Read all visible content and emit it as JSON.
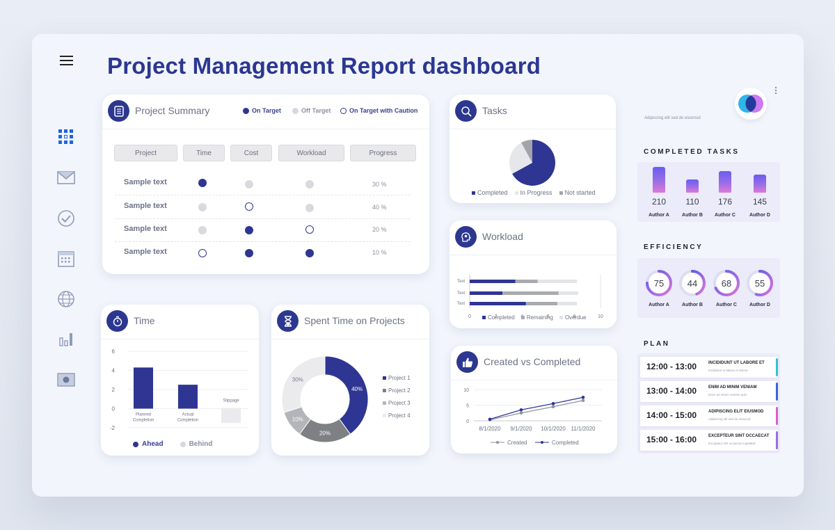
{
  "header": {
    "title": "Project Management Report dashboard"
  },
  "sidebar": {
    "items": [
      {
        "name": "dashboard",
        "icon": "grid-icon"
      },
      {
        "name": "mail",
        "icon": "mail-icon"
      },
      {
        "name": "tasks",
        "icon": "check-circle-icon"
      },
      {
        "name": "calendar",
        "icon": "calendar-icon"
      },
      {
        "name": "web",
        "icon": "globe-icon"
      },
      {
        "name": "reports",
        "icon": "bar-chart-icon"
      },
      {
        "name": "media",
        "icon": "screen-icon"
      }
    ]
  },
  "project_summary": {
    "title": "Project Summary",
    "legend": [
      "On Target",
      "Off Target",
      "On Target with Caution"
    ],
    "columns": [
      "Project",
      "Time",
      "Cost",
      "Workload",
      "Progress"
    ],
    "rows": [
      {
        "label": "Sample text",
        "time": "on",
        "cost": "off",
        "workload": "off",
        "progress": "30 %"
      },
      {
        "label": "Sample text",
        "time": "off",
        "cost": "caution",
        "workload": "off",
        "progress": "40 %"
      },
      {
        "label": "Sample text",
        "time": "off",
        "cost": "on",
        "workload": "caution",
        "progress": "20 %"
      },
      {
        "label": "Sample text",
        "time": "caution",
        "cost": "on",
        "workload": "on",
        "progress": "10 %"
      }
    ]
  },
  "tasks": {
    "title": "Tasks",
    "legend": [
      "Completed",
      "In Progress",
      "Not started"
    ]
  },
  "workload": {
    "title": "Workload",
    "row_labels": [
      "Text",
      "Text",
      "Text"
    ],
    "x_ticks": [
      "0",
      "2",
      "4",
      "6",
      "8",
      "10"
    ],
    "legend": [
      "Completed",
      "Remaining",
      "Overdue"
    ]
  },
  "time": {
    "title": "Time",
    "y_ticks": [
      "6",
      "4",
      "2",
      "0",
      "-2"
    ],
    "bar_labels": [
      "Planned Completion",
      "Actual Completion",
      "Slippage"
    ],
    "legend": [
      "Ahead",
      "Behind"
    ]
  },
  "spent_time": {
    "title": "Spent Time on Projects",
    "legend": [
      "Project 1",
      "Project 2",
      "Project 3",
      "Project 4"
    ]
  },
  "created_vs_completed": {
    "title": "Created vs Completed",
    "y_ticks": [
      "10",
      "5",
      "0"
    ],
    "legend": [
      "Created",
      "Completed"
    ]
  },
  "profile": {
    "caption": "Adipiscing elit sed do eiusmod",
    "icon": "more-vertical-icon"
  },
  "completed_tasks": {
    "title": "COMPLETED TASKS",
    "items": [
      {
        "value": "210",
        "author": "Author A"
      },
      {
        "value": "110",
        "author": "Author B"
      },
      {
        "value": "176",
        "author": "Author C"
      },
      {
        "value": "145",
        "author": "Author D"
      }
    ]
  },
  "efficiency": {
    "title": "EFFICIENCY",
    "items": [
      {
        "value": "75",
        "author": "Author A"
      },
      {
        "value": "44",
        "author": "Author B"
      },
      {
        "value": "68",
        "author": "Author C"
      },
      {
        "value": "55",
        "author": "Author D"
      }
    ]
  },
  "plan": {
    "title": "PLAN",
    "items": [
      {
        "time": "12:00 - 13:00",
        "task": "INCIDIDUNT UT LABORE ET",
        "sub": "Incididunt ut labore et dolore",
        "color": "#2fc4d8"
      },
      {
        "time": "13:00 - 14:00",
        "task": "ENIM AD MINIM VENIAM",
        "sub": "Enim ad minim veniam quis",
        "color": "#3a63d8"
      },
      {
        "time": "14:00 - 15:00",
        "task": "ADIPISCING ELIT EIUSMOD",
        "sub": "Adipiscing elit sed do eiusmod",
        "color": "#d65fd0"
      },
      {
        "time": "15:00 - 16:00",
        "task": "EXCEPTEUR SINT OCCAECAT",
        "sub": "Excepteur sint occaecat cupidatat",
        "color": "#9b6ee0"
      }
    ]
  },
  "chart_data": [
    {
      "type": "pie",
      "name": "tasks",
      "categories": [
        "Completed",
        "In Progress",
        "Not started"
      ],
      "values": [
        67,
        25,
        8
      ],
      "colors": [
        "#2e3592",
        "#e6e7ea",
        "#a3a4aa"
      ]
    },
    {
      "type": "bar",
      "name": "workload",
      "orientation": "horizontal",
      "stacked": true,
      "categories": [
        "Text",
        "Text",
        "Text"
      ],
      "series": [
        {
          "name": "Completed",
          "values": [
            3.5,
            2.5,
            4.3
          ],
          "color": "#2e3592"
        },
        {
          "name": "Remaining",
          "values": [
            1.7,
            4.3,
            2.4
          ],
          "color": "#a9aaae"
        },
        {
          "name": "Overdue",
          "values": [
            3,
            1.5,
            1.5
          ],
          "color": "#e3e4e8"
        }
      ],
      "xlim": [
        0,
        10
      ]
    },
    {
      "type": "bar",
      "name": "time",
      "categories": [
        "Planned Completion",
        "Actual Completion",
        "Slippage"
      ],
      "values": [
        4.3,
        2.5,
        -1.5
      ],
      "colors": [
        "#2e3592",
        "#2e3592",
        "#ebebee"
      ],
      "ylim": [
        -2,
        6
      ]
    },
    {
      "type": "pie",
      "name": "spent_time",
      "donut": true,
      "categories": [
        "Project 1",
        "Project 2",
        "Project 3",
        "Project 4"
      ],
      "values": [
        40,
        20,
        10,
        30
      ],
      "labels": [
        "40%",
        "20%",
        "10%",
        "30%"
      ],
      "colors": [
        "#2e3592",
        "#7f8083",
        "#b4b5b8",
        "#ebebee"
      ]
    },
    {
      "type": "line",
      "name": "created_vs_completed",
      "x": [
        "8/1/2020",
        "9/1/2020",
        "10/1/2020",
        "11/1/2020"
      ],
      "series": [
        {
          "name": "Created",
          "values": [
            0.3,
            2.5,
            4.5,
            6.5
          ],
          "color": "#8f92a0"
        },
        {
          "name": "Completed",
          "values": [
            0.5,
            3.5,
            5.5,
            7.5
          ],
          "color": "#2e3592"
        }
      ],
      "ylim": [
        0,
        10
      ]
    },
    {
      "type": "bar",
      "name": "completed_tasks",
      "categories": [
        "Author A",
        "Author B",
        "Author C",
        "Author D"
      ],
      "values": [
        210,
        110,
        176,
        145
      ]
    },
    {
      "type": "pie",
      "name": "efficiency",
      "categories": [
        "Author A",
        "Author B",
        "Author C",
        "Author D"
      ],
      "values": [
        75,
        44,
        68,
        55
      ]
    }
  ]
}
